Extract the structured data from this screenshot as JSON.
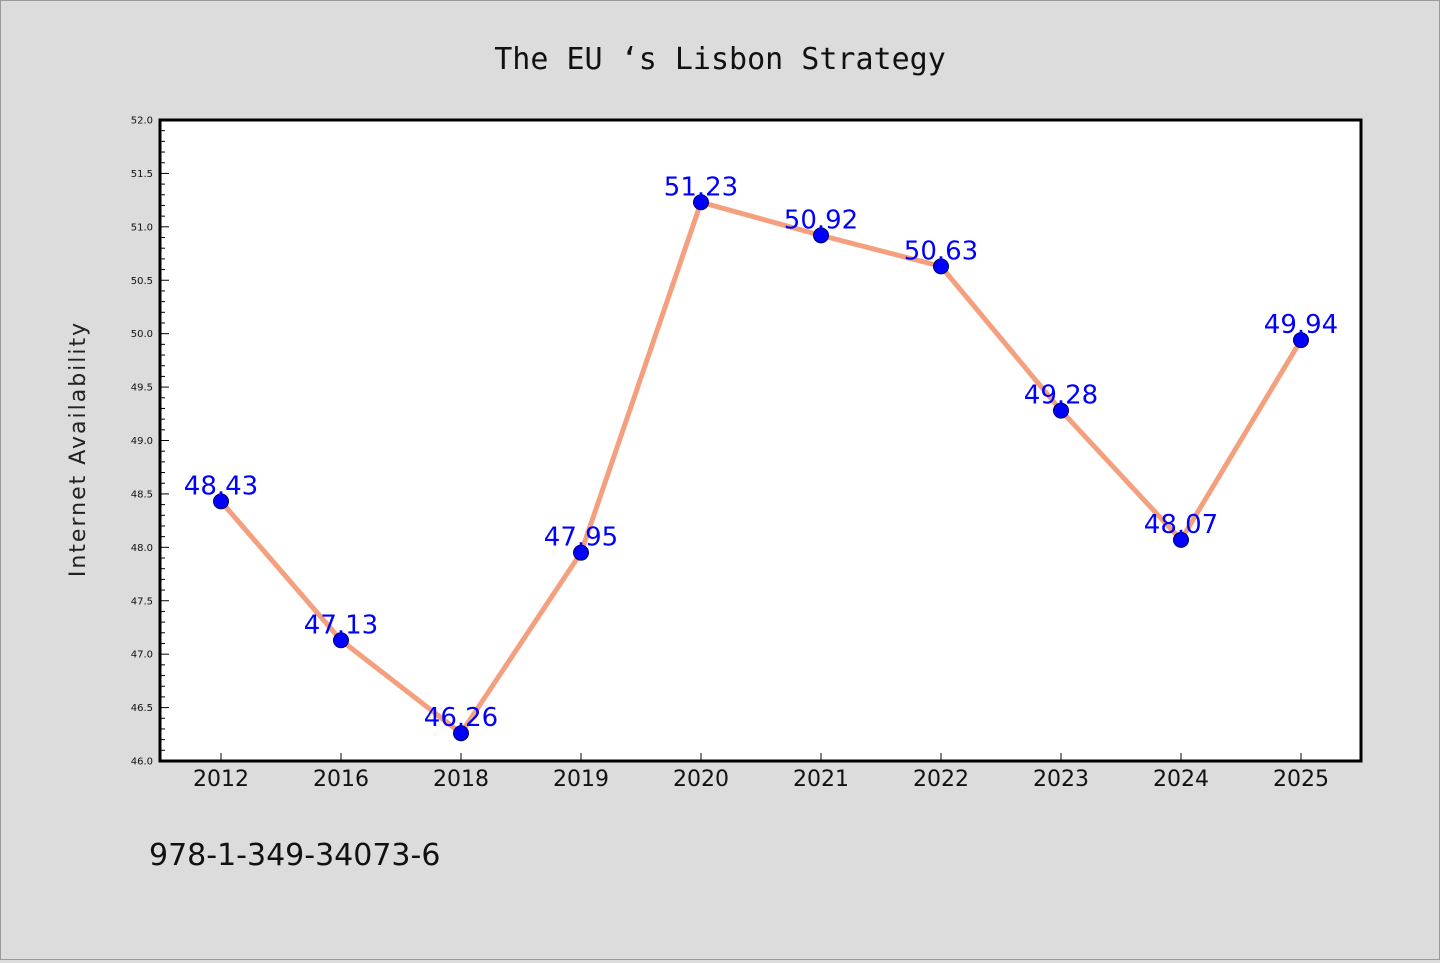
{
  "chart_data": {
    "type": "line",
    "title": "The EU ‘s Lisbon Strategy",
    "xlabel": "",
    "ylabel": "Internet Availability",
    "categories": [
      "2012",
      "2016",
      "2018",
      "2019",
      "2020",
      "2021",
      "2022",
      "2023",
      "2024",
      "2025"
    ],
    "series": [
      {
        "values": [
          48.43,
          47.13,
          46.26,
          47.95,
          51.23,
          50.92,
          50.63,
          49.28,
          48.07,
          49.94
        ],
        "data_labels": [
          "48.43",
          "47.13",
          "46.26",
          "47.95",
          "51.23",
          "50.92",
          "50.63",
          "49.28",
          "48.07",
          "49.94"
        ],
        "line_color": "#f4a07e",
        "marker_color": "#0000ff"
      }
    ],
    "ylim": [
      46.0,
      52.0
    ],
    "yticks": [
      "46.0",
      "46.5",
      "47.0",
      "47.5",
      "48.0",
      "48.5",
      "49.0",
      "49.5",
      "50.0",
      "50.5",
      "51.0",
      "51.5",
      "52.0"
    ],
    "grid": false,
    "legend": "none"
  },
  "footer": {
    "isbn": "978-1-349-34073-6"
  },
  "colors": {
    "background": "#dcdcdc",
    "plot_background": "#ffffff",
    "data_label": "#0000ff"
  }
}
